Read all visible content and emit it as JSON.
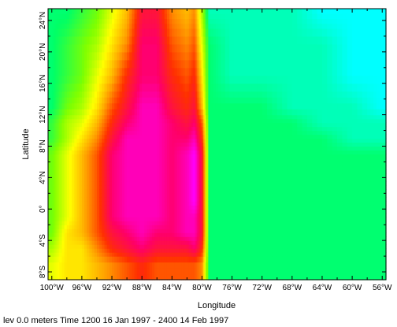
{
  "chart_data": {
    "type": "heatmap",
    "title": "",
    "xlabel": "Longitude",
    "ylabel": "Latitude",
    "xlim": [
      -100.5,
      -55.5
    ],
    "ylim": [
      -9,
      25.5
    ],
    "x_tick_labels": [
      "100°W",
      "96°W",
      "92°W",
      "88°W",
      "84°W",
      "80°W",
      "76°W",
      "72°W",
      "68°W",
      "64°W",
      "60°W",
      "56°W"
    ],
    "x_tick_values": [
      -100,
      -96,
      -92,
      -88,
      -84,
      -80,
      -76,
      -72,
      -68,
      -64,
      -60,
      -56
    ],
    "y_tick_labels": [
      "8°S",
      "4°S",
      "0°",
      "4°N",
      "8°N",
      "12°N",
      "16°N",
      "20°N",
      "24°N"
    ],
    "y_tick_values": [
      -8,
      -4,
      0,
      4,
      8,
      12,
      16,
      20,
      24
    ],
    "colormap": [
      "#00ffff",
      "#00ff66",
      "#80ff00",
      "#ffff00",
      "#ffa000",
      "#ff3000",
      "#ff0066",
      "#ff00ff"
    ],
    "land_color": "#80ff00",
    "columns": [
      {
        "lon": -100,
        "values": [
          6,
          5,
          4,
          4,
          4,
          4,
          4,
          4,
          3,
          3,
          2,
          2,
          2,
          2
        ]
      },
      {
        "lon": -98,
        "values": [
          7,
          7,
          7,
          6,
          6,
          6,
          6,
          6,
          5,
          5,
          4,
          3,
          3,
          2
        ]
      },
      {
        "lon": -96,
        "values": [
          7,
          7,
          8,
          8,
          8,
          8,
          8,
          8,
          7,
          6,
          5,
          4,
          4,
          3
        ]
      },
      {
        "lon": -94,
        "values": [
          8,
          9,
          10,
          10,
          10,
          10,
          10,
          10,
          9,
          8,
          7,
          6,
          5,
          4
        ]
      },
      {
        "lon": -92,
        "values": [
          9,
          11,
          12,
          13,
          13,
          13,
          13,
          13,
          12,
          11,
          10,
          8,
          7,
          6
        ]
      },
      {
        "lon": -90,
        "values": [
          10,
          12,
          13,
          14,
          14,
          14,
          14,
          14,
          14,
          13,
          12,
          11,
          9,
          8
        ]
      },
      {
        "lon": -88,
        "values": [
          11,
          13,
          14,
          14,
          14,
          14,
          14,
          14,
          14,
          14,
          14,
          13,
          13,
          12
        ]
      },
      {
        "lon": -86,
        "values": [
          10,
          12,
          13,
          14,
          14,
          14,
          14,
          14,
          14,
          14,
          14,
          13,
          13,
          12
        ]
      },
      {
        "lon": -84,
        "values": [
          10,
          12,
          13,
          13,
          13,
          13,
          13,
          13,
          13,
          13,
          12,
          11,
          10,
          9
        ]
      },
      {
        "lon": -82,
        "values": [
          10,
          12,
          14,
          14,
          14,
          14,
          14,
          14,
          13,
          12,
          11,
          10,
          9,
          8
        ]
      },
      {
        "lon": -81,
        "values": [
          10,
          13,
          14,
          14,
          15,
          15,
          15,
          15,
          14,
          13,
          12,
          11,
          10,
          9
        ]
      },
      {
        "lon": -80,
        "values": [
          9,
          11,
          12,
          12,
          12,
          12,
          12,
          12,
          11,
          10,
          8,
          7,
          6,
          5
        ]
      },
      {
        "lon": -79,
        "values": [
          2,
          2,
          2,
          2,
          2,
          2,
          2,
          2,
          2,
          2,
          2,
          2,
          2,
          1
        ]
      },
      {
        "lon": -76,
        "values": [
          2,
          2,
          2,
          2,
          2,
          2,
          2,
          2,
          2,
          2,
          2,
          1,
          1,
          1
        ]
      },
      {
        "lon": -72,
        "values": [
          2,
          2,
          2,
          2,
          2,
          2,
          2,
          2,
          2,
          2,
          2,
          1,
          1,
          1
        ]
      },
      {
        "lon": -68,
        "values": [
          2,
          2,
          2,
          2,
          2,
          2,
          2,
          2,
          2,
          2,
          1,
          1,
          1,
          1
        ]
      },
      {
        "lon": -64,
        "values": [
          2,
          2,
          2,
          2,
          2,
          2,
          2,
          2,
          2,
          1,
          1,
          1,
          1,
          0
        ]
      },
      {
        "lon": -60,
        "values": [
          2,
          2,
          2,
          2,
          2,
          2,
          2,
          2,
          1,
          1,
          1,
          0,
          0,
          0
        ]
      },
      {
        "lon": -56,
        "values": [
          2,
          2,
          2,
          2,
          2,
          2,
          2,
          2,
          1,
          1,
          0,
          0,
          0,
          0
        ]
      }
    ],
    "row_lats": [
      -7,
      -5,
      -3,
      -1,
      1,
      3,
      5,
      7,
      9,
      11,
      13,
      17,
      21,
      25
    ],
    "grid": false,
    "legend": "none"
  },
  "footer": {
    "text": "lev 0.0 meters Time 1200 16 Jan 1997 - 2400 14 Feb 1997"
  }
}
